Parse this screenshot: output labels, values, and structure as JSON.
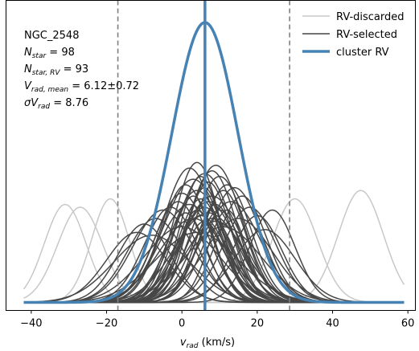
{
  "chart_data": {
    "type": "line",
    "xlabel": "v_rad (km/s)",
    "xlim": [
      -42,
      59
    ],
    "ylim": [
      0,
      1.02
    ],
    "xticks": [
      -40,
      -20,
      0,
      20,
      40,
      60
    ],
    "grid": false,
    "legend_position": "top-right",
    "annotations": {
      "cluster": "NGC_2548",
      "n_star": "98",
      "n_star_rv": "93",
      "v_mean": "6.12±0.72",
      "sigma_v": "8.76"
    },
    "vlines": [
      {
        "x": -17.0,
        "style": "dashed",
        "color": "#808080"
      },
      {
        "x": 6.12,
        "style": "solid",
        "color": "#4682b4"
      },
      {
        "x": 28.6,
        "style": "dashed",
        "color": "#808080"
      }
    ],
    "series": [
      {
        "name": "RV-discarded",
        "color": "#c8c8c8",
        "curves": [
          {
            "mu": -31,
            "sigma": 5.5,
            "amp": 0.35
          },
          {
            "mu": -27,
            "sigma": 6.0,
            "amp": 0.34
          },
          {
            "mu": -19,
            "sigma": 5.0,
            "amp": 0.37
          },
          {
            "mu": 30,
            "sigma": 6.0,
            "amp": 0.37
          },
          {
            "mu": 47.5,
            "sigma": 6.0,
            "amp": 0.4
          }
        ]
      },
      {
        "name": "RV-selected",
        "color": "#474747",
        "curves": [
          {
            "mu": 2,
            "sigma": 7.0,
            "amp": 0.48
          },
          {
            "mu": 4,
            "sigma": 6.0,
            "amp": 0.5
          },
          {
            "mu": 6,
            "sigma": 7.5,
            "amp": 0.46
          },
          {
            "mu": 8,
            "sigma": 6.5,
            "amp": 0.47
          },
          {
            "mu": 5,
            "sigma": 5.5,
            "amp": 0.45
          },
          {
            "mu": 9,
            "sigma": 7.0,
            "amp": 0.49
          },
          {
            "mu": 3,
            "sigma": 8.0,
            "amp": 0.44
          },
          {
            "mu": 7,
            "sigma": 6.0,
            "amp": 0.43
          },
          {
            "mu": 1,
            "sigma": 6.5,
            "amp": 0.42
          },
          {
            "mu": 10,
            "sigma": 7.0,
            "amp": 0.45
          },
          {
            "mu": 6,
            "sigma": 5.0,
            "amp": 0.41
          },
          {
            "mu": 4,
            "sigma": 7.0,
            "amp": 0.4
          },
          {
            "mu": 12,
            "sigma": 6.5,
            "amp": 0.42
          },
          {
            "mu": 0,
            "sigma": 7.0,
            "amp": 0.39
          },
          {
            "mu": 8,
            "sigma": 8.0,
            "amp": 0.38
          },
          {
            "mu": 5,
            "sigma": 6.0,
            "amp": 0.37
          },
          {
            "mu": 11,
            "sigma": 6.0,
            "amp": 0.4
          },
          {
            "mu": 3,
            "sigma": 5.5,
            "amp": 0.38
          },
          {
            "mu": 7,
            "sigma": 7.5,
            "amp": 0.36
          },
          {
            "mu": 14,
            "sigma": 7.0,
            "amp": 0.41
          },
          {
            "mu": -1,
            "sigma": 6.5,
            "amp": 0.36
          },
          {
            "mu": 9,
            "sigma": 5.5,
            "amp": 0.35
          },
          {
            "mu": 2,
            "sigma": 8.0,
            "amp": 0.35
          },
          {
            "mu": 6,
            "sigma": 6.5,
            "amp": 0.34
          },
          {
            "mu": 13,
            "sigma": 8.0,
            "amp": 0.36
          },
          {
            "mu": 4,
            "sigma": 5.0,
            "amp": 0.33
          },
          {
            "mu": 10,
            "sigma": 6.0,
            "amp": 0.33
          },
          {
            "mu": -3,
            "sigma": 7.0,
            "amp": 0.34
          },
          {
            "mu": 16,
            "sigma": 6.5,
            "amp": 0.38
          },
          {
            "mu": 7,
            "sigma": 9.0,
            "amp": 0.32
          },
          {
            "mu": 1,
            "sigma": 5.5,
            "amp": 0.32
          },
          {
            "mu": 5,
            "sigma": 7.0,
            "amp": 0.31
          },
          {
            "mu": 12,
            "sigma": 5.0,
            "amp": 0.33
          },
          {
            "mu": -5,
            "sigma": 8.0,
            "amp": 0.33
          },
          {
            "mu": 8,
            "sigma": 6.0,
            "amp": 0.3
          },
          {
            "mu": 18,
            "sigma": 7.0,
            "amp": 0.34
          },
          {
            "mu": 3,
            "sigma": 9.0,
            "amp": 0.3
          },
          {
            "mu": 6,
            "sigma": 5.5,
            "amp": 0.29
          },
          {
            "mu": 15,
            "sigma": 9.0,
            "amp": 0.3
          },
          {
            "mu": -7,
            "sigma": 7.5,
            "amp": 0.3
          },
          {
            "mu": 9,
            "sigma": 8.0,
            "amp": 0.29
          },
          {
            "mu": 20,
            "sigma": 6.5,
            "amp": 0.31
          },
          {
            "mu": -10,
            "sigma": 7.0,
            "amp": 0.28
          },
          {
            "mu": 24,
            "sigma": 6.0,
            "amp": 0.33
          },
          {
            "mu": 0,
            "sigma": 10.0,
            "amp": 0.27
          },
          {
            "mu": 11,
            "sigma": 10.0,
            "amp": 0.27
          },
          {
            "mu": -12,
            "sigma": 8.0,
            "amp": 0.25
          },
          {
            "mu": 22,
            "sigma": 8.0,
            "amp": 0.26
          },
          {
            "mu": 4,
            "sigma": 11.0,
            "amp": 0.25
          },
          {
            "mu": -8,
            "sigma": 10.0,
            "amp": 0.24
          }
        ]
      },
      {
        "name": "cluster RV",
        "color": "#4682b4",
        "curves": [
          {
            "mu": 6.12,
            "sigma": 8.76,
            "amp": 1.0
          }
        ]
      }
    ]
  }
}
